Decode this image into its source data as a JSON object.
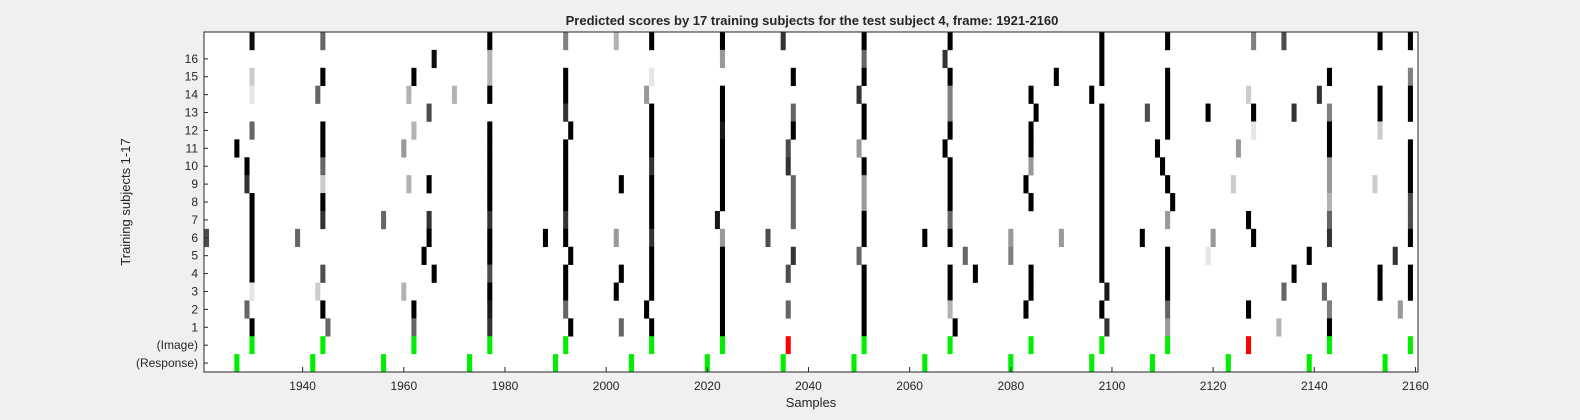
{
  "chart_data": {
    "type": "heatmap",
    "title": "Predicted scores by 17 training subjects for the test subject 4, frame: 1921-2160",
    "xlabel": "Samples",
    "ylabel": "Training subjects 1-17",
    "xlim": [
      1921,
      2160
    ],
    "x_ticks": [
      "1940",
      "1960",
      "1980",
      "2000",
      "2020",
      "2040",
      "2060",
      "2080",
      "2100",
      "2120",
      "2140",
      "2160"
    ],
    "rows": [
      "17",
      "16",
      "15",
      "14",
      "13",
      "12",
      "11",
      "10",
      "9",
      "8",
      "7",
      "6",
      "5",
      "4",
      "3",
      "2",
      "1",
      "(Image)",
      "(Response)"
    ],
    "y_tick_labels": [
      "16",
      "15",
      "14",
      "13",
      "12",
      "11",
      "10",
      "9",
      "8",
      "7",
      "6",
      "5",
      "4",
      "3",
      "2",
      "1",
      "(Image)",
      "(Response)"
    ],
    "grid": false,
    "colormap": "white-to-black predicted score; markers green/red",
    "colors": {
      "background": "#ffffff",
      "dark": "#000000",
      "target": "#00ee00",
      "nontarget": "#ff0000"
    },
    "base_columns": [
      1930,
      1944,
      1962,
      1977,
      1992,
      2009,
      2023,
      2037,
      2051,
      2068,
      2084,
      2098,
      2111,
      2128,
      2143,
      2159
    ],
    "response_markers": [
      1927,
      1942,
      1956,
      1973,
      1990,
      2005,
      2020,
      2035,
      2049,
      2063,
      2080,
      2096,
      2108,
      2123,
      2139,
      2154
    ],
    "cells": [
      [
        17,
        1930,
        0.95
      ],
      [
        17,
        1944,
        0.6
      ],
      [
        17,
        1977,
        1.0
      ],
      [
        17,
        1992,
        0.5
      ],
      [
        17,
        2002,
        0.3
      ],
      [
        17,
        2009,
        1.0
      ],
      [
        17,
        2023,
        1.0
      ],
      [
        17,
        2035,
        0.8
      ],
      [
        17,
        2051,
        1.0
      ],
      [
        17,
        2068,
        1.0
      ],
      [
        17,
        2098,
        1.0
      ],
      [
        17,
        2111,
        1.0
      ],
      [
        17,
        2128,
        0.5
      ],
      [
        17,
        2134,
        0.7
      ],
      [
        17,
        2153,
        1.0
      ],
      [
        17,
        2159,
        1.0
      ],
      [
        16,
        1966,
        0.95
      ],
      [
        16,
        1977,
        0.3
      ],
      [
        16,
        2023,
        0.4
      ],
      [
        16,
        2051,
        0.6
      ],
      [
        16,
        2067,
        0.8
      ],
      [
        16,
        2098,
        1.0
      ],
      [
        15,
        1930,
        0.2
      ],
      [
        15,
        1944,
        1.0
      ],
      [
        15,
        1962,
        1.0
      ],
      [
        15,
        1977,
        0.3
      ],
      [
        15,
        1992,
        1.0
      ],
      [
        15,
        2009,
        0.1
      ],
      [
        15,
        2037,
        1.0
      ],
      [
        15,
        2051,
        1.0
      ],
      [
        15,
        2068,
        1.0
      ],
      [
        15,
        2089,
        1.0
      ],
      [
        15,
        2098,
        1.0
      ],
      [
        15,
        2111,
        1.0
      ],
      [
        15,
        2143,
        1.0
      ],
      [
        15,
        2159,
        0.5
      ],
      [
        14,
        1930,
        0.1
      ],
      [
        14,
        1943,
        0.6
      ],
      [
        14,
        1961,
        0.3
      ],
      [
        14,
        1970,
        0.3
      ],
      [
        14,
        1977,
        1.0
      ],
      [
        14,
        1992,
        1.0
      ],
      [
        14,
        2008,
        0.4
      ],
      [
        14,
        2023,
        1.0
      ],
      [
        14,
        2050,
        0.8
      ],
      [
        14,
        2068,
        0.5
      ],
      [
        14,
        2084,
        1.0
      ],
      [
        14,
        2096,
        1.0
      ],
      [
        14,
        2111,
        1.0
      ],
      [
        14,
        2127,
        0.2
      ],
      [
        14,
        2141,
        0.8
      ],
      [
        14,
        2153,
        1.0
      ],
      [
        14,
        2159,
        1.0
      ],
      [
        13,
        1965,
        0.7
      ],
      [
        13,
        1992,
        0.8
      ],
      [
        13,
        2009,
        1.0
      ],
      [
        13,
        2023,
        1.0
      ],
      [
        13,
        2037,
        0.6
      ],
      [
        13,
        2051,
        1.0
      ],
      [
        13,
        2068,
        0.5
      ],
      [
        13,
        2085,
        1.0
      ],
      [
        13,
        2098,
        1.0
      ],
      [
        13,
        2107,
        0.7
      ],
      [
        13,
        2111,
        1.0
      ],
      [
        13,
        2119,
        1.0
      ],
      [
        13,
        2128,
        1.0
      ],
      [
        13,
        2136,
        0.8
      ],
      [
        13,
        2143,
        0.5
      ],
      [
        13,
        2153,
        1.0
      ],
      [
        13,
        2159,
        1.0
      ],
      [
        12,
        1930,
        0.6
      ],
      [
        12,
        1944,
        1.0
      ],
      [
        12,
        1962,
        0.3
      ],
      [
        12,
        1977,
        1.0
      ],
      [
        12,
        1993,
        1.0
      ],
      [
        12,
        2009,
        1.0
      ],
      [
        12,
        2023,
        0.9
      ],
      [
        12,
        2037,
        1.0
      ],
      [
        12,
        2051,
        1.0
      ],
      [
        12,
        2068,
        1.0
      ],
      [
        12,
        2084,
        1.0
      ],
      [
        12,
        2098,
        1.0
      ],
      [
        12,
        2111,
        1.0
      ],
      [
        12,
        2128,
        0.1
      ],
      [
        12,
        2143,
        1.0
      ],
      [
        12,
        2153,
        0.2
      ],
      [
        11,
        1927,
        1.0
      ],
      [
        11,
        1944,
        1.0
      ],
      [
        11,
        1960,
        0.4
      ],
      [
        11,
        1977,
        1.0
      ],
      [
        11,
        1992,
        1.0
      ],
      [
        11,
        2009,
        1.0
      ],
      [
        11,
        2023,
        1.0
      ],
      [
        11,
        2036,
        0.7
      ],
      [
        11,
        2050,
        0.4
      ],
      [
        11,
        2067,
        1.0
      ],
      [
        11,
        2084,
        1.0
      ],
      [
        11,
        2098,
        1.0
      ],
      [
        11,
        2109,
        1.0
      ],
      [
        11,
        2125,
        0.4
      ],
      [
        11,
        2143,
        1.0
      ],
      [
        11,
        2159,
        1.0
      ],
      [
        10,
        1929,
        1.0
      ],
      [
        10,
        1944,
        0.6
      ],
      [
        10,
        1977,
        1.0
      ],
      [
        10,
        1992,
        1.0
      ],
      [
        10,
        2009,
        0.8
      ],
      [
        10,
        2023,
        1.0
      ],
      [
        10,
        2036,
        0.8
      ],
      [
        10,
        2051,
        1.0
      ],
      [
        10,
        2068,
        1.0
      ],
      [
        10,
        2084,
        0.4
      ],
      [
        10,
        2098,
        1.0
      ],
      [
        10,
        2110,
        1.0
      ],
      [
        10,
        2143,
        0.4
      ],
      [
        10,
        2159,
        1.0
      ],
      [
        9,
        1929,
        0.8
      ],
      [
        9,
        1944,
        0.2
      ],
      [
        9,
        1961,
        0.3
      ],
      [
        9,
        1965,
        1.0
      ],
      [
        9,
        1977,
        1.0
      ],
      [
        9,
        1992,
        1.0
      ],
      [
        9,
        2003,
        1.0
      ],
      [
        9,
        2009,
        1.0
      ],
      [
        9,
        2023,
        1.0
      ],
      [
        9,
        2037,
        0.6
      ],
      [
        9,
        2051,
        0.4
      ],
      [
        9,
        2068,
        1.0
      ],
      [
        9,
        2083,
        1.0
      ],
      [
        9,
        2098,
        1.0
      ],
      [
        9,
        2111,
        1.0
      ],
      [
        9,
        2124,
        0.2
      ],
      [
        9,
        2143,
        0.4
      ],
      [
        9,
        2152,
        0.2
      ],
      [
        9,
        2159,
        1.0
      ],
      [
        8,
        1930,
        1.0
      ],
      [
        8,
        1944,
        1.0
      ],
      [
        8,
        1977,
        1.0
      ],
      [
        8,
        1992,
        1.0
      ],
      [
        8,
        2009,
        1.0
      ],
      [
        8,
        2023,
        1.0
      ],
      [
        8,
        2037,
        0.6
      ],
      [
        8,
        2051,
        0.4
      ],
      [
        8,
        2068,
        1.0
      ],
      [
        8,
        2084,
        1.0
      ],
      [
        8,
        2098,
        1.0
      ],
      [
        8,
        2112,
        1.0
      ],
      [
        8,
        2143,
        0.3
      ],
      [
        8,
        2159,
        0.7
      ],
      [
        7,
        1930,
        1.0
      ],
      [
        7,
        1944,
        0.8
      ],
      [
        7,
        1956,
        0.6
      ],
      [
        7,
        1965,
        0.8
      ],
      [
        7,
        1977,
        0.8
      ],
      [
        7,
        1992,
        0.8
      ],
      [
        7,
        2009,
        1.0
      ],
      [
        7,
        2022,
        0.9
      ],
      [
        7,
        2037,
        0.6
      ],
      [
        7,
        2051,
        1.0
      ],
      [
        7,
        2068,
        0.6
      ],
      [
        7,
        2098,
        1.0
      ],
      [
        7,
        2111,
        0.4
      ],
      [
        7,
        2127,
        1.0
      ],
      [
        7,
        2143,
        0.6
      ],
      [
        7,
        2159,
        0.7
      ],
      [
        6,
        1921,
        0.7
      ],
      [
        6,
        1930,
        1.0
      ],
      [
        6,
        1939,
        0.6
      ],
      [
        6,
        1965,
        1.0
      ],
      [
        6,
        1977,
        1.0
      ],
      [
        6,
        1988,
        1.0
      ],
      [
        6,
        1992,
        1.0
      ],
      [
        6,
        2002,
        0.4
      ],
      [
        6,
        2009,
        0.8
      ],
      [
        6,
        2023,
        0.4
      ],
      [
        6,
        2032,
        0.7
      ],
      [
        6,
        2051,
        1.0
      ],
      [
        6,
        2063,
        1.0
      ],
      [
        6,
        2068,
        1.0
      ],
      [
        6,
        2080,
        0.4
      ],
      [
        6,
        2090,
        0.4
      ],
      [
        6,
        2098,
        1.0
      ],
      [
        6,
        2106,
        1.0
      ],
      [
        6,
        2120,
        0.4
      ],
      [
        6,
        2128,
        1.0
      ],
      [
        6,
        2143,
        0.8
      ],
      [
        6,
        2159,
        1.0
      ],
      [
        5,
        1930,
        1.0
      ],
      [
        5,
        1964,
        1.0
      ],
      [
        5,
        1977,
        1.0
      ],
      [
        5,
        1993,
        1.0
      ],
      [
        5,
        2009,
        1.0
      ],
      [
        5,
        2023,
        1.0
      ],
      [
        5,
        2037,
        0.8
      ],
      [
        5,
        2050,
        0.6
      ],
      [
        5,
        2071,
        0.6
      ],
      [
        5,
        2080,
        0.5
      ],
      [
        5,
        2098,
        1.0
      ],
      [
        5,
        2111,
        1.0
      ],
      [
        5,
        2119,
        0.1
      ],
      [
        5,
        2139,
        1.0
      ],
      [
        5,
        2156,
        0.8
      ],
      [
        4,
        1930,
        1.0
      ],
      [
        4,
        1944,
        0.7
      ],
      [
        4,
        1966,
        1.0
      ],
      [
        4,
        1977,
        0.7
      ],
      [
        4,
        1992,
        1.0
      ],
      [
        4,
        2003,
        1.0
      ],
      [
        4,
        2009,
        1.0
      ],
      [
        4,
        2023,
        1.0
      ],
      [
        4,
        2036,
        0.7
      ],
      [
        4,
        2051,
        1.0
      ],
      [
        4,
        2068,
        1.0
      ],
      [
        4,
        2073,
        1.0
      ],
      [
        4,
        2084,
        1.0
      ],
      [
        4,
        2098,
        1.0
      ],
      [
        4,
        2111,
        1.0
      ],
      [
        4,
        2136,
        1.0
      ],
      [
        4,
        2153,
        1.0
      ],
      [
        4,
        2159,
        1.0
      ],
      [
        3,
        1930,
        0.1
      ],
      [
        3,
        1943,
        0.2
      ],
      [
        3,
        1960,
        0.3
      ],
      [
        3,
        1977,
        1.0
      ],
      [
        3,
        1992,
        1.0
      ],
      [
        3,
        2002,
        1.0
      ],
      [
        3,
        2009,
        1.0
      ],
      [
        3,
        2023,
        1.0
      ],
      [
        3,
        2051,
        1.0
      ],
      [
        3,
        2068,
        1.0
      ],
      [
        3,
        2084,
        1.0
      ],
      [
        3,
        2099,
        0.9
      ],
      [
        3,
        2111,
        1.0
      ],
      [
        3,
        2134,
        0.6
      ],
      [
        3,
        2142,
        0.6
      ],
      [
        3,
        2153,
        1.0
      ],
      [
        3,
        2159,
        1.0
      ],
      [
        2,
        1929,
        0.6
      ],
      [
        2,
        1944,
        1.0
      ],
      [
        2,
        1962,
        1.0
      ],
      [
        2,
        1977,
        0.9
      ],
      [
        2,
        1992,
        0.6
      ],
      [
        2,
        2008,
        1.0
      ],
      [
        2,
        2023,
        1.0
      ],
      [
        2,
        2036,
        0.6
      ],
      [
        2,
        2051,
        1.0
      ],
      [
        2,
        2068,
        0.3
      ],
      [
        2,
        2083,
        1.0
      ],
      [
        2,
        2098,
        1.0
      ],
      [
        2,
        2111,
        0.6
      ],
      [
        2,
        2127,
        1.0
      ],
      [
        2,
        2143,
        0.5
      ],
      [
        2,
        2157,
        0.4
      ],
      [
        1,
        1930,
        1.0
      ],
      [
        1,
        1945,
        0.6
      ],
      [
        1,
        1962,
        0.6
      ],
      [
        1,
        1977,
        0.8
      ],
      [
        1,
        1993,
        1.0
      ],
      [
        1,
        2003,
        0.6
      ],
      [
        1,
        2009,
        1.0
      ],
      [
        1,
        2023,
        1.0
      ],
      [
        1,
        2051,
        1.0
      ],
      [
        1,
        2069,
        1.0
      ],
      [
        1,
        2099,
        0.8
      ],
      [
        1,
        2111,
        0.4
      ],
      [
        1,
        2133,
        0.3
      ],
      [
        1,
        2143,
        1.0
      ]
    ],
    "image_markers": [
      [
        1930,
        "green"
      ],
      [
        1944,
        "green"
      ],
      [
        1962,
        "green"
      ],
      [
        1977,
        "green"
      ],
      [
        1992,
        "green"
      ],
      [
        2009,
        "green"
      ],
      [
        2023,
        "green"
      ],
      [
        2036,
        "red"
      ],
      [
        2051,
        "green"
      ],
      [
        2068,
        "green"
      ],
      [
        2084,
        "green"
      ],
      [
        2098,
        "green"
      ],
      [
        2111,
        "green"
      ],
      [
        2127,
        "red"
      ],
      [
        2143,
        "green"
      ],
      [
        2159,
        "green"
      ]
    ]
  }
}
